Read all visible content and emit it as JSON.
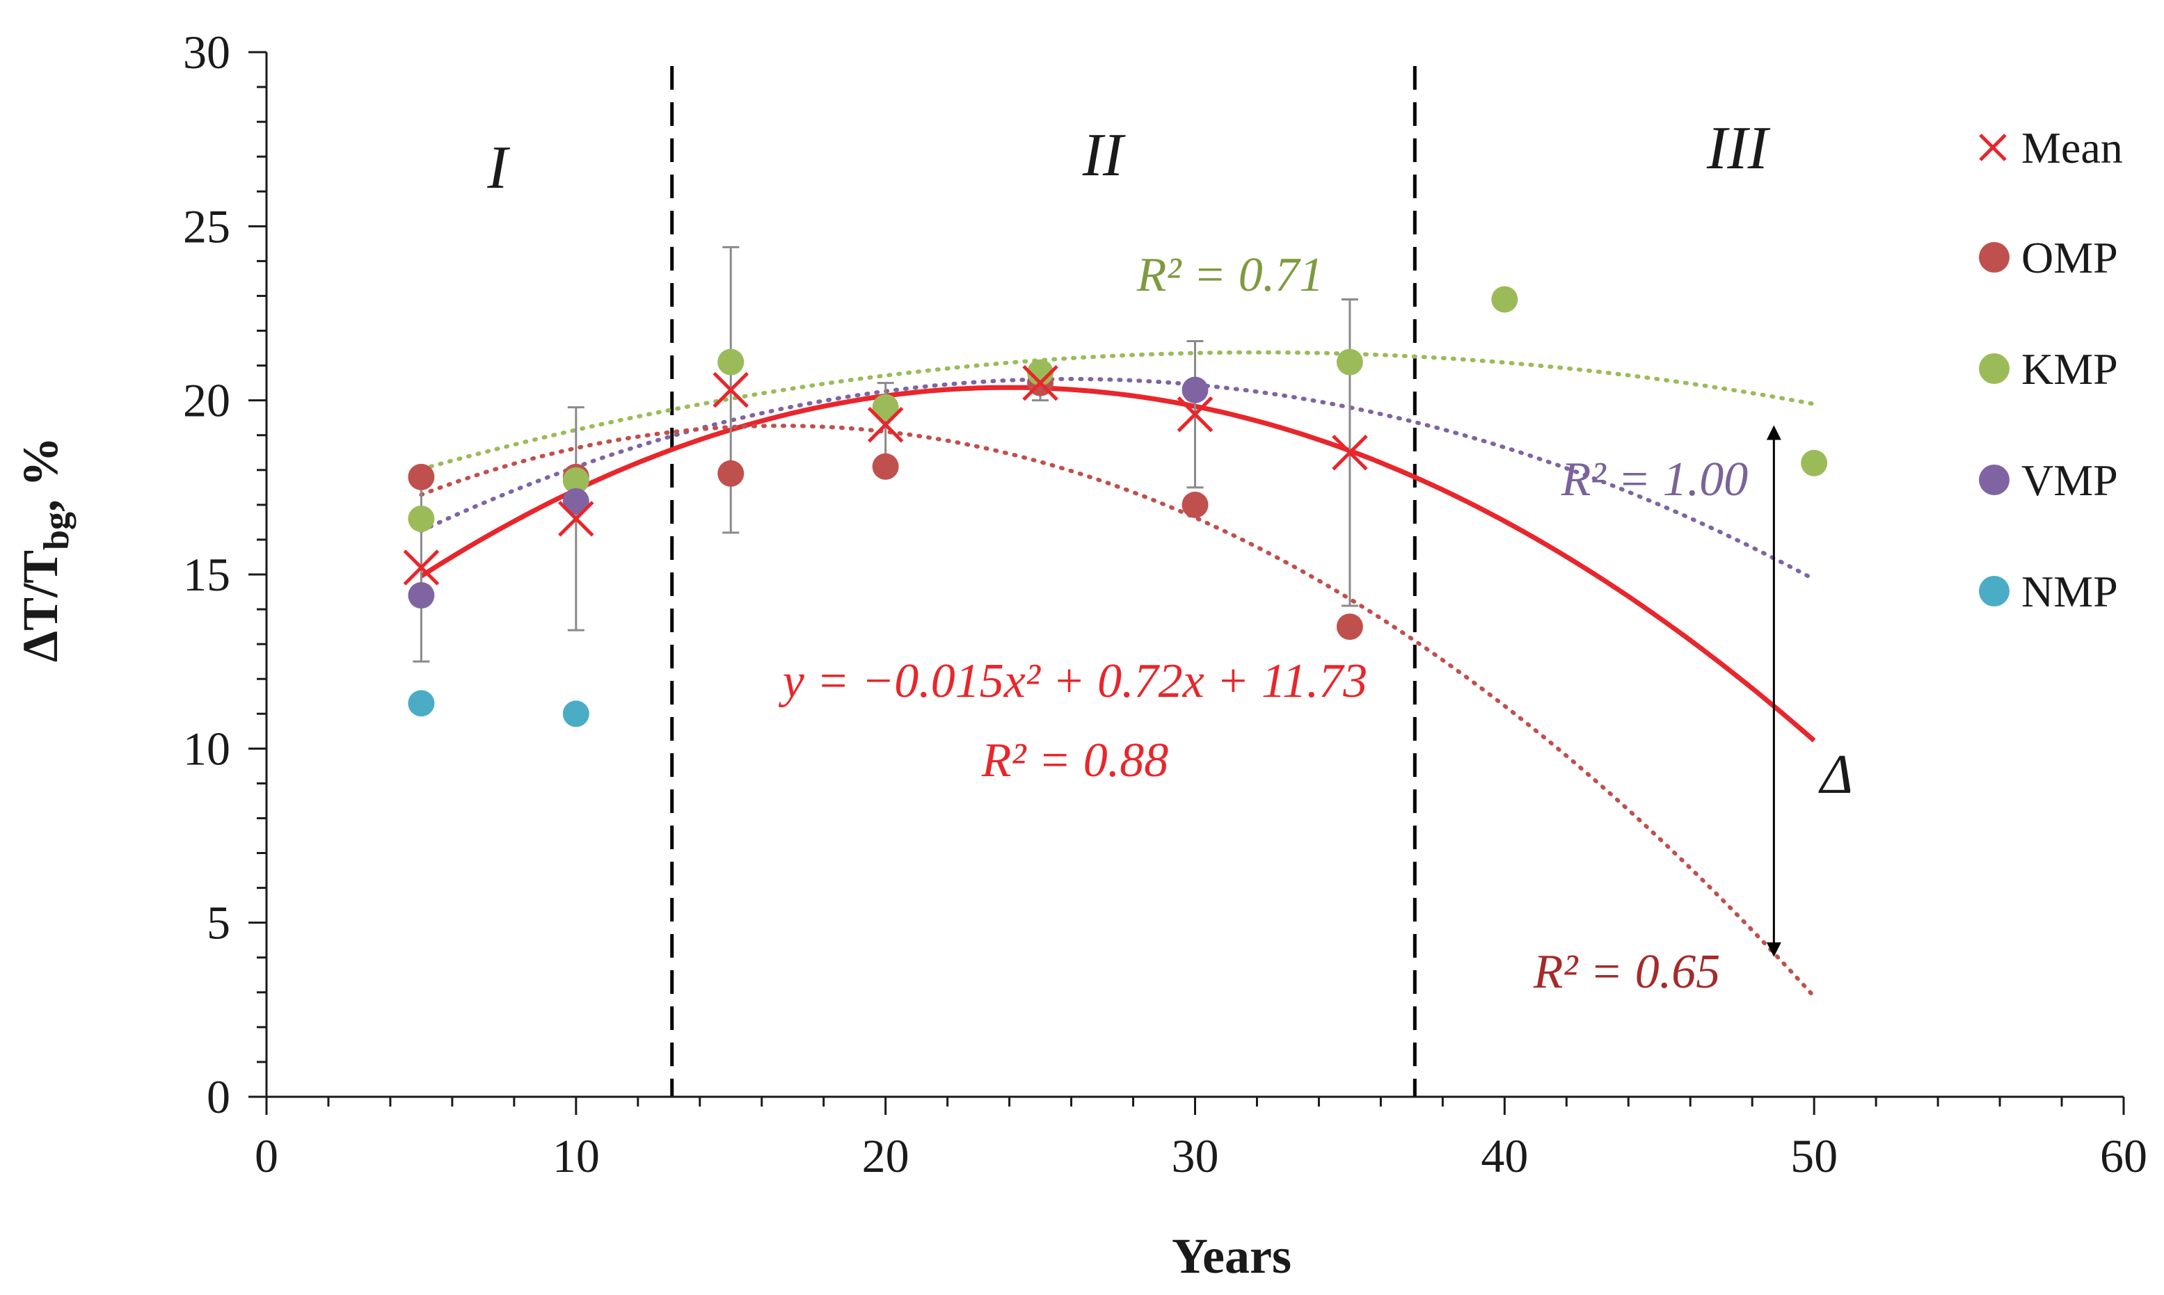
{
  "chart_data": {
    "type": "scatter",
    "title": "",
    "xlabel": "Years",
    "ylabel_main": "ΔT/T",
    "ylabel_sub": "bg",
    "ylabel_tail": ", %",
    "xlim": [
      0,
      60
    ],
    "ylim": [
      0,
      30
    ],
    "x_ticks": [
      "0",
      "10",
      "20",
      "30",
      "40",
      "50",
      "60"
    ],
    "y_ticks": [
      "0",
      "5",
      "10",
      "15",
      "20",
      "25",
      "30"
    ],
    "grid": false,
    "legend_position": "right",
    "zones": [
      {
        "label": "I",
        "from": 0,
        "to": 13.1
      },
      {
        "label": "II",
        "from": 13.1,
        "to": 37.1
      },
      {
        "label": "III",
        "from": 37.1,
        "to": 60
      }
    ],
    "zone_dividers_x": [
      13.1,
      37.1
    ],
    "series": [
      {
        "name": "Mean",
        "marker": "x",
        "color": "#e8262b",
        "points": [
          {
            "x": 5,
            "y": 15.2,
            "err": 2.7
          },
          {
            "x": 10,
            "y": 16.6,
            "err": 3.2
          },
          {
            "x": 15,
            "y": 20.3,
            "err": 4.1
          },
          {
            "x": 20,
            "y": 19.3,
            "err": 1.2
          },
          {
            "x": 25,
            "y": 20.5,
            "err": 0.5
          },
          {
            "x": 30,
            "y": 19.6,
            "err": 2.1
          },
          {
            "x": 35,
            "y": 18.5,
            "err": 4.4
          }
        ]
      },
      {
        "name": "OMP",
        "marker": "circle",
        "color": "#c0504d",
        "points": [
          {
            "x": 5,
            "y": 17.8
          },
          {
            "x": 10,
            "y": 17.8
          },
          {
            "x": 15,
            "y": 17.9
          },
          {
            "x": 20,
            "y": 18.1
          },
          {
            "x": 25,
            "y": 20.5
          },
          {
            "x": 30,
            "y": 17.0
          },
          {
            "x": 35,
            "y": 13.5
          }
        ]
      },
      {
        "name": "KMP",
        "marker": "circle",
        "color": "#9bbb59",
        "points": [
          {
            "x": 5,
            "y": 16.6
          },
          {
            "x": 10,
            "y": 17.7
          },
          {
            "x": 15,
            "y": 21.1
          },
          {
            "x": 20,
            "y": 19.8
          },
          {
            "x": 25,
            "y": 20.8
          },
          {
            "x": 35,
            "y": 21.1
          },
          {
            "x": 40,
            "y": 22.9
          },
          {
            "x": 50,
            "y": 18.2
          }
        ]
      },
      {
        "name": "VMP",
        "marker": "circle",
        "color": "#8064a2",
        "points": [
          {
            "x": 5,
            "y": 14.4
          },
          {
            "x": 10,
            "y": 17.1
          },
          {
            "x": 30,
            "y": 20.3
          }
        ]
      },
      {
        "name": "NMP",
        "marker": "circle",
        "color": "#4bacc6",
        "points": [
          {
            "x": 5,
            "y": 11.3
          },
          {
            "x": 10,
            "y": 11.0
          }
        ]
      }
    ],
    "trendlines": [
      {
        "name": "Mean trend",
        "style": "solid",
        "color": "#e8262b",
        "coef": [
          -0.015,
          0.72,
          11.73
        ],
        "x_range": [
          5,
          50
        ],
        "equation": "y = −0.015x² + 0.72x + 11.73",
        "r2_label": "R² = 0.88"
      },
      {
        "name": "KMP trend",
        "style": "dotted",
        "color": "#9bbb59",
        "coef": [
          -0.00459,
          0.294,
          16.67
        ],
        "x_range": [
          5,
          50
        ],
        "r2_label": "R² = 0.71"
      },
      {
        "name": "VMP trend",
        "style": "dotted",
        "color": "#8064a2",
        "coef": [
          -0.00994,
          0.5157,
          13.925
        ],
        "x_range": [
          5,
          50
        ],
        "r2_label": "R² = 1.00"
      },
      {
        "name": "OMP trend",
        "style": "dotted",
        "color": "#c0504d",
        "coef": [
          -0.0147,
          0.4882,
          15.217
        ],
        "x_range": [
          5,
          50
        ],
        "r2_label": "R² = 0.65"
      }
    ],
    "delta_arrow": {
      "x": 48.7,
      "y_top": 19.2,
      "y_bottom": 4.1,
      "label": "Δ"
    }
  }
}
